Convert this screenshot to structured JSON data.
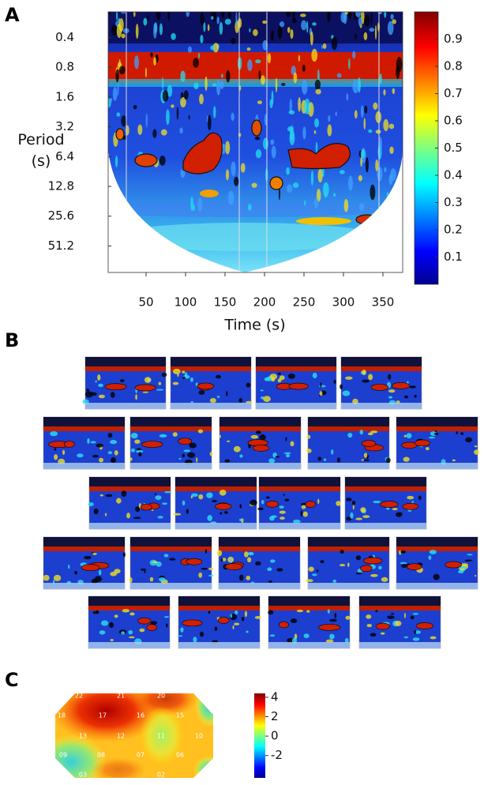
{
  "panel_a": {
    "letter": "A",
    "y_label_lines": [
      "Period",
      "(s)"
    ],
    "x_label": "Time (s)",
    "ylim": [
      0.22,
      95
    ],
    "ylog": true,
    "yticks": [
      0.4,
      0.8,
      1.6,
      3.2,
      6.4,
      12.8,
      25.6,
      51.2
    ],
    "xlim": [
      2,
      375
    ],
    "xticks": [
      50,
      100,
      150,
      200,
      250,
      300,
      350
    ],
    "clim": [
      0,
      1
    ],
    "cticks": [
      0.1,
      0.2,
      0.3,
      0.4,
      0.5,
      0.6,
      0.7,
      0.8,
      0.9
    ]
  },
  "panel_b": {
    "letter": "B"
  },
  "panel_c": {
    "letter": "C",
    "clim": [
      -4.3,
      4.4
    ],
    "cticks": [
      4,
      2,
      0,
      {
        "value": -2,
        "label": "-2"
      }
    ],
    "electrodes": [
      "22",
      "21",
      "20",
      "18",
      "17",
      "16",
      "15",
      "13",
      "12",
      "11",
      "10",
      "09",
      "08",
      "07",
      "06",
      "03",
      "02"
    ]
  }
}
